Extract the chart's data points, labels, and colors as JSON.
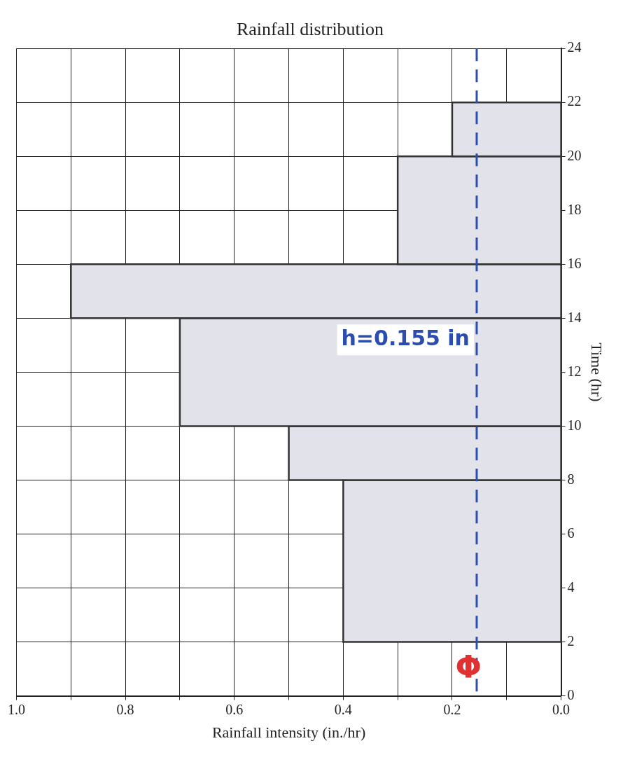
{
  "chart_data": {
    "type": "histogram",
    "title": "Rainfall distribution",
    "xlabel": "Rainfall intensity (in./hr)",
    "ylabel": "Time (hr)",
    "orientation": "horizontal",
    "bins": [
      2,
      8,
      10,
      14,
      16,
      20,
      22
    ],
    "values": [
      0.4,
      0.5,
      0.7,
      0.9,
      0.3,
      0.2
    ],
    "color": "#e2e2ea",
    "xlim": [
      1.0,
      0.0
    ],
    "xticks": [
      {
        "value": 1,
        "label": "1.0"
      },
      {
        "value": 0.9,
        "label": null
      },
      0.8,
      {
        "value": 0.7,
        "label": null
      },
      0.6,
      {
        "value": 0.5,
        "label": null
      },
      0.4,
      {
        "value": 0.3,
        "label": null
      },
      0.2,
      {
        "value": 0.1,
        "label": null
      },
      {
        "value": 0,
        "label": "0.0"
      }
    ],
    "ylim": [
      0,
      24
    ],
    "yticks": [
      0,
      2,
      4,
      6,
      8,
      10,
      12,
      14,
      16,
      18,
      20,
      22,
      24
    ],
    "grid": true,
    "ref_lines": [
      {
        "axis": "x",
        "value": 0.155,
        "label": "h=0.155 in",
        "color": "#2b4db0",
        "line_style": "dashed"
      }
    ],
    "annotations": [
      "Φ"
    ]
  }
}
